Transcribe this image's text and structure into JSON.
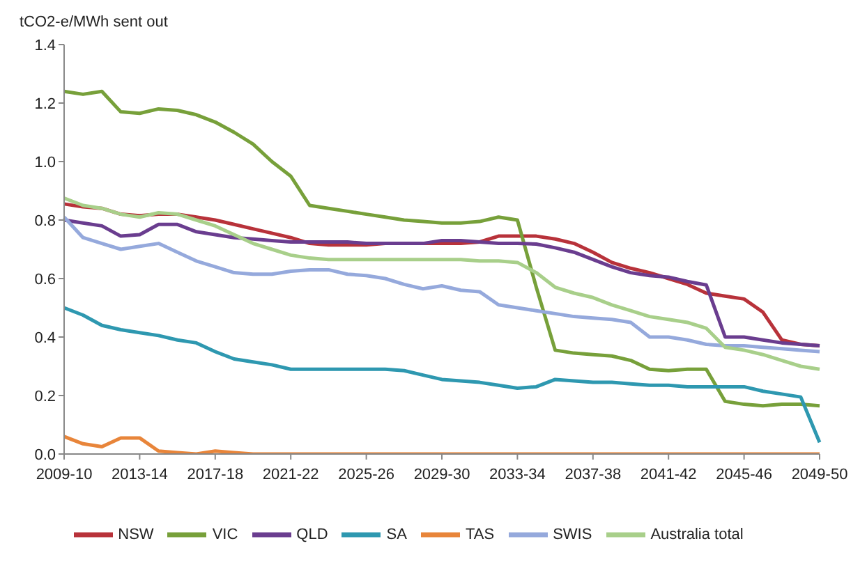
{
  "chart_data": {
    "type": "line",
    "ylabel": "tCO2-e/MWh sent out",
    "categories": [
      "2009-10",
      null,
      null,
      null,
      "2013-14",
      null,
      null,
      null,
      "2017-18",
      null,
      null,
      null,
      "2021-22",
      null,
      null,
      null,
      "2025-26",
      null,
      null,
      null,
      "2029-30",
      null,
      null,
      null,
      "2033-34",
      null,
      null,
      null,
      "2037-38",
      null,
      null,
      null,
      "2041-42",
      null,
      null,
      null,
      "2045-46",
      null,
      null,
      null,
      "2049-50"
    ],
    "series": [
      {
        "name": "NSW",
        "color": "#b8323a",
        "values": [
          0.855,
          0.845,
          0.84,
          0.82,
          0.815,
          0.82,
          0.82,
          0.81,
          0.8,
          0.785,
          0.77,
          0.755,
          0.74,
          0.72,
          0.715,
          0.715,
          0.715,
          0.72,
          0.72,
          0.72,
          0.72,
          0.72,
          0.725,
          0.745,
          0.745,
          0.745,
          0.735,
          0.72,
          0.69,
          0.655,
          0.635,
          0.62,
          0.6,
          0.58,
          0.55,
          0.54,
          0.53,
          0.485,
          0.39,
          0.375,
          0.37
        ]
      },
      {
        "name": "VIC",
        "color": "#77a03a",
        "values": [
          1.24,
          1.23,
          1.24,
          1.17,
          1.165,
          1.18,
          1.175,
          1.16,
          1.135,
          1.1,
          1.06,
          1.0,
          0.95,
          0.85,
          0.84,
          0.83,
          0.82,
          0.81,
          0.8,
          0.795,
          0.79,
          0.79,
          0.795,
          0.81,
          0.8,
          0.57,
          0.355,
          0.345,
          0.34,
          0.335,
          0.32,
          0.29,
          0.285,
          0.29,
          0.29,
          0.18,
          0.17,
          0.165,
          0.17,
          0.17,
          0.165
        ]
      },
      {
        "name": "QLD",
        "color": "#6a3d8f",
        "values": [
          0.8,
          0.79,
          0.78,
          0.745,
          0.75,
          0.785,
          0.785,
          0.76,
          0.75,
          0.74,
          0.735,
          0.73,
          0.725,
          0.725,
          0.725,
          0.725,
          0.72,
          0.72,
          0.72,
          0.72,
          0.73,
          0.73,
          0.725,
          0.72,
          0.72,
          0.718,
          0.705,
          0.69,
          0.665,
          0.64,
          0.62,
          0.61,
          0.605,
          0.59,
          0.578,
          0.4,
          0.4,
          0.39,
          0.38,
          0.375,
          0.37
        ]
      },
      {
        "name": "SA",
        "color": "#2e98b0",
        "values": [
          0.5,
          0.475,
          0.44,
          0.425,
          0.415,
          0.405,
          0.39,
          0.38,
          0.35,
          0.325,
          0.315,
          0.305,
          0.29,
          0.29,
          0.29,
          0.29,
          0.29,
          0.29,
          0.285,
          0.27,
          0.255,
          0.25,
          0.245,
          0.235,
          0.225,
          0.23,
          0.255,
          0.25,
          0.245,
          0.245,
          0.24,
          0.235,
          0.235,
          0.23,
          0.23,
          0.23,
          0.23,
          0.215,
          0.205,
          0.195,
          0.04
        ]
      },
      {
        "name": "TAS",
        "color": "#e8853a",
        "values": [
          0.06,
          0.035,
          0.025,
          0.055,
          0.055,
          0.01,
          0.005,
          0,
          0.01,
          0.005,
          0,
          0,
          0,
          0,
          0,
          0,
          0,
          0,
          0,
          0,
          0,
          0,
          0,
          0,
          0,
          0,
          0,
          0,
          0,
          0,
          0,
          0,
          0,
          0,
          0,
          0,
          0,
          0,
          0,
          0,
          0
        ]
      },
      {
        "name": "SWIS",
        "color": "#95a9dc",
        "values": [
          0.81,
          0.74,
          0.72,
          0.7,
          0.71,
          0.72,
          0.69,
          0.66,
          0.64,
          0.62,
          0.615,
          0.615,
          0.625,
          0.63,
          0.63,
          0.615,
          0.61,
          0.6,
          0.58,
          0.565,
          0.575,
          0.56,
          0.555,
          0.51,
          0.5,
          0.49,
          0.48,
          0.47,
          0.465,
          0.46,
          0.45,
          0.4,
          0.4,
          0.39,
          0.375,
          0.37,
          0.37,
          0.365,
          0.36,
          0.355,
          0.35
        ]
      },
      {
        "name": "Australia total",
        "color": "#a8cf8a",
        "values": [
          0.875,
          0.85,
          0.84,
          0.82,
          0.81,
          0.825,
          0.82,
          0.8,
          0.78,
          0.75,
          0.72,
          0.7,
          0.68,
          0.67,
          0.665,
          0.665,
          0.665,
          0.665,
          0.665,
          0.665,
          0.665,
          0.665,
          0.66,
          0.66,
          0.655,
          0.62,
          0.57,
          0.55,
          0.535,
          0.51,
          0.49,
          0.47,
          0.46,
          0.45,
          0.43,
          0.365,
          0.355,
          0.34,
          0.32,
          0.3,
          0.29
        ]
      }
    ],
    "ylim": [
      0,
      1.4
    ],
    "yticks": [
      {
        "value": 0,
        "label": "0.0"
      },
      0.2,
      0.4,
      0.6,
      0.8,
      {
        "value": 1,
        "label": "1.0"
      },
      1.2,
      1.4
    ],
    "grid": false,
    "legend": "bottom"
  }
}
